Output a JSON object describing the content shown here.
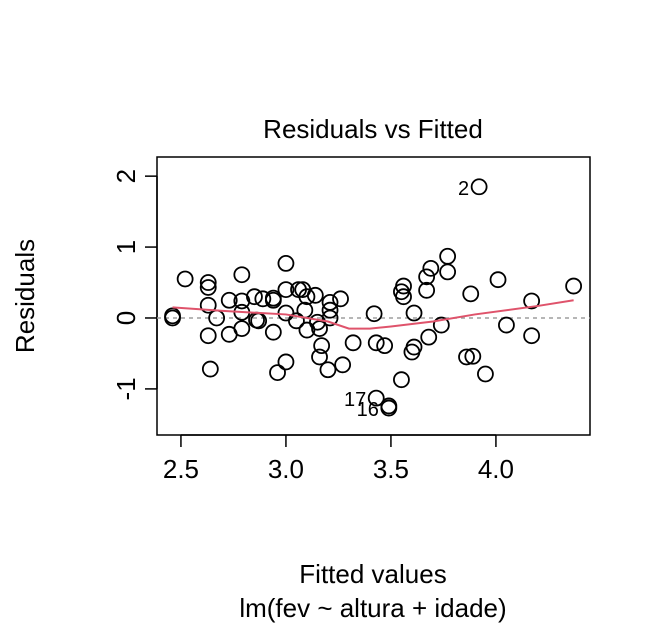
{
  "chart_data": {
    "type": "scatter",
    "title": "Residuals vs Fitted",
    "xlabel": "Fitted values",
    "subtitle": "lm(fev ~ altura + idade)",
    "ylabel": "Residuals",
    "xlim": [
      2.386,
      4.448
    ],
    "ylim": [
      -1.65,
      2.27
    ],
    "xticks": [
      2.5,
      3.0,
      3.5,
      4.0
    ],
    "xtick_labels": [
      "2.5",
      "3.0",
      "3.5",
      "4.0"
    ],
    "yticks": [
      -1,
      0,
      1,
      2
    ],
    "ytick_labels": [
      "-1",
      "0",
      "1",
      "2"
    ],
    "grid": false,
    "colors": {
      "points": "#000000",
      "smooth": "#DF536B",
      "reference": "#9E9E9E"
    },
    "points": [
      [
        2.46,
        0.0
      ],
      [
        2.46,
        0.03
      ],
      [
        2.52,
        0.55
      ],
      [
        2.63,
        0.5
      ],
      [
        2.63,
        0.43
      ],
      [
        2.63,
        0.18
      ],
      [
        2.63,
        -0.25
      ],
      [
        2.64,
        -0.72
      ],
      [
        2.67,
        0.0
      ],
      [
        2.73,
        0.25
      ],
      [
        2.73,
        -0.23
      ],
      [
        2.79,
        0.61
      ],
      [
        2.79,
        0.24
      ],
      [
        2.79,
        0.08
      ],
      [
        2.79,
        -0.15
      ],
      [
        2.85,
        0.3
      ],
      [
        2.86,
        -0.03
      ],
      [
        2.87,
        -0.04
      ],
      [
        2.89,
        0.27
      ],
      [
        2.94,
        0.28
      ],
      [
        2.94,
        0.25
      ],
      [
        2.94,
        -0.2
      ],
      [
        2.96,
        -0.77
      ],
      [
        3.0,
        0.77
      ],
      [
        3.0,
        0.4
      ],
      [
        3.0,
        0.07
      ],
      [
        3.0,
        -0.62
      ],
      [
        3.05,
        -0.04
      ],
      [
        3.06,
        0.4
      ],
      [
        3.08,
        0.4
      ],
      [
        3.1,
        0.3
      ],
      [
        3.09,
        0.11
      ],
      [
        3.1,
        -0.17
      ],
      [
        3.14,
        0.32
      ],
      [
        3.15,
        -0.06
      ],
      [
        3.16,
        -0.15
      ],
      [
        3.16,
        -0.55
      ],
      [
        3.17,
        -0.39
      ],
      [
        3.2,
        -0.73
      ],
      [
        3.21,
        0.11
      ],
      [
        3.21,
        0.22
      ],
      [
        3.21,
        0.0
      ],
      [
        3.26,
        0.27
      ],
      [
        3.27,
        -0.66
      ],
      [
        3.32,
        -0.35
      ],
      [
        3.42,
        0.06
      ],
      [
        3.43,
        -1.13
      ],
      [
        3.49,
        -1.24
      ],
      [
        3.49,
        -1.27
      ],
      [
        3.43,
        -0.35
      ],
      [
        3.47,
        -0.39
      ],
      [
        3.55,
        0.37
      ],
      [
        3.56,
        0.45
      ],
      [
        3.56,
        0.3
      ],
      [
        3.61,
        0.07
      ],
      [
        3.55,
        -0.87
      ],
      [
        3.6,
        -0.48
      ],
      [
        3.61,
        -0.41
      ],
      [
        3.68,
        -0.27
      ],
      [
        3.67,
        0.39
      ],
      [
        3.67,
        0.58
      ],
      [
        3.69,
        0.7
      ],
      [
        3.77,
        0.87
      ],
      [
        3.77,
        0.65
      ],
      [
        3.74,
        -0.1
      ],
      [
        3.88,
        0.34
      ],
      [
        4.01,
        0.54
      ],
      [
        3.86,
        -0.55
      ],
      [
        3.89,
        -0.54
      ],
      [
        3.95,
        -0.79
      ],
      [
        3.92,
        1.85
      ],
      [
        4.05,
        -0.1
      ],
      [
        4.17,
        0.24
      ],
      [
        4.17,
        -0.25
      ],
      [
        4.37,
        0.45
      ]
    ],
    "smooth_line": [
      [
        2.46,
        0.15
      ],
      [
        2.7,
        0.1
      ],
      [
        3.0,
        0.05
      ],
      [
        3.2,
        -0.05
      ],
      [
        3.3,
        -0.15
      ],
      [
        3.4,
        -0.15
      ],
      [
        3.5,
        -0.12
      ],
      [
        3.7,
        -0.05
      ],
      [
        3.9,
        0.05
      ],
      [
        4.2,
        0.17
      ],
      [
        4.37,
        0.25
      ]
    ],
    "annotations": [
      {
        "text": "2",
        "x": 3.92,
        "y": 1.85,
        "side": "left"
      },
      {
        "text": "17",
        "x": 3.43,
        "y": -1.13,
        "side": "left"
      },
      {
        "text": "16",
        "x": 3.49,
        "y": -1.27,
        "side": "left"
      }
    ]
  }
}
